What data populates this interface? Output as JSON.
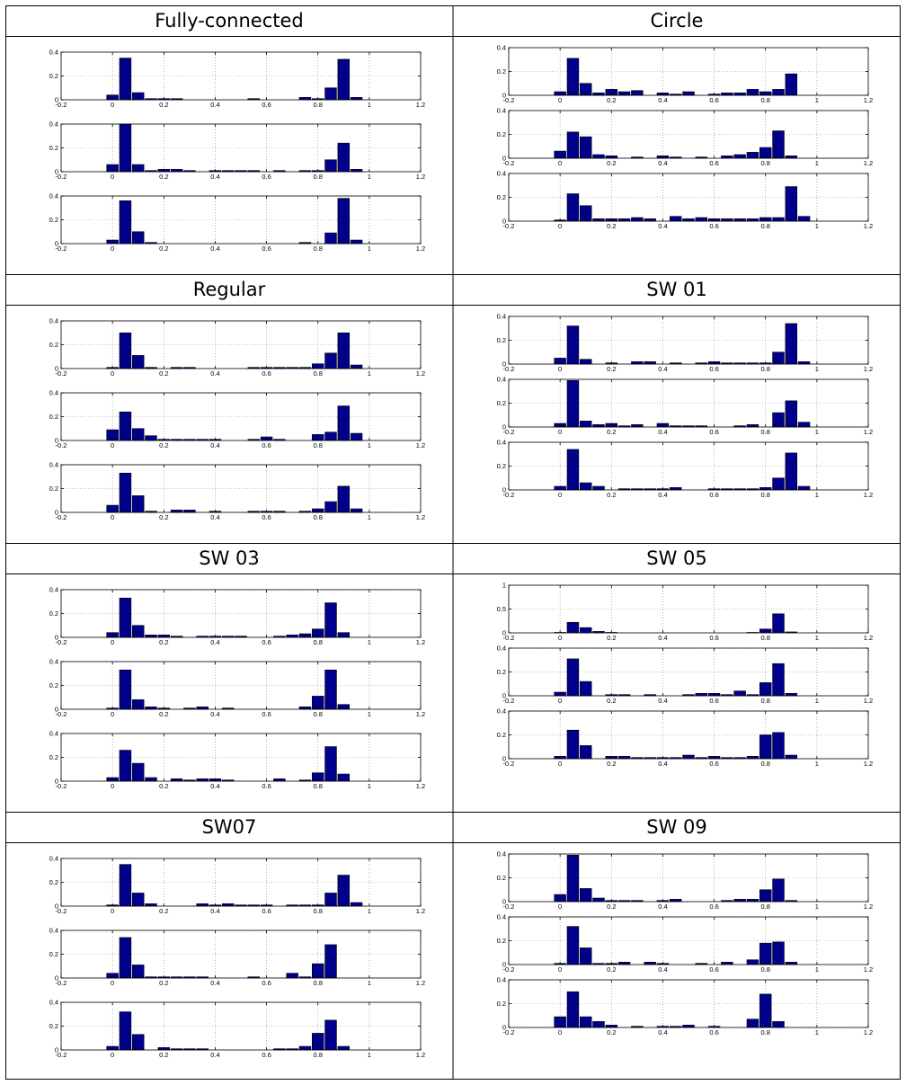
{
  "colors": {
    "bar": "#00008B",
    "bar_edge": "#000000",
    "axis": "#000000",
    "grid": "#888888",
    "table_border": "#000000"
  },
  "x_ticks": [
    "-0.2",
    "0",
    "0.2",
    "0.4",
    "0.6",
    "0.8",
    "1",
    "1.2"
  ],
  "chart_data": [
    {
      "title": "Fully-connected",
      "type": "bar",
      "panels": [
        {
          "ylim": [
            0,
            0.4
          ],
          "y_ticks": [
            "0",
            "0.2",
            "0.4"
          ],
          "values": [
            0.04,
            0.35,
            0.06,
            0.01,
            0.01,
            0.01,
            0,
            0,
            0,
            0,
            0,
            0.01,
            0,
            0,
            0,
            0.02,
            0.01,
            0.1,
            0.34,
            0.02
          ]
        },
        {
          "ylim": [
            0,
            0.4
          ],
          "y_ticks": [
            "0",
            "0.2",
            "0.4"
          ],
          "values": [
            0.06,
            0.4,
            0.06,
            0.01,
            0.02,
            0.02,
            0.01,
            0,
            0.01,
            0.01,
            0.01,
            0.01,
            0,
            0.01,
            0,
            0.01,
            0.01,
            0.1,
            0.24,
            0.02
          ]
        },
        {
          "ylim": [
            0,
            0.4
          ],
          "y_ticks": [
            "0",
            "0.2",
            "0.4"
          ],
          "values": [
            0.03,
            0.36,
            0.1,
            0.01,
            0,
            0,
            0,
            0,
            0,
            0,
            0,
            0,
            0,
            0,
            0,
            0.01,
            0,
            0.09,
            0.38,
            0.03
          ]
        }
      ]
    },
    {
      "title": "Circle",
      "type": "bar",
      "panels": [
        {
          "ylim": [
            0,
            0.4
          ],
          "y_ticks": [
            "0",
            "0.2",
            "0.4"
          ],
          "values": [
            0.03,
            0.31,
            0.1,
            0.02,
            0.05,
            0.03,
            0.04,
            0,
            0.02,
            0.01,
            0.03,
            0,
            0.01,
            0.02,
            0.02,
            0.05,
            0.03,
            0.05,
            0.18,
            0
          ]
        },
        {
          "ylim": [
            0,
            0.4
          ],
          "y_ticks": [
            "0",
            "0.2",
            "0.4"
          ],
          "values": [
            0.06,
            0.22,
            0.18,
            0.03,
            0.02,
            0,
            0.01,
            0,
            0.02,
            0.01,
            0,
            0.01,
            0,
            0.02,
            0.03,
            0.05,
            0.09,
            0.23,
            0.02,
            0
          ]
        },
        {
          "ylim": [
            0,
            0.4
          ],
          "y_ticks": [
            "0",
            "0.2",
            "0.4"
          ],
          "values": [
            0.01,
            0.23,
            0.13,
            0.02,
            0.02,
            0.02,
            0.03,
            0.02,
            0,
            0.04,
            0.02,
            0.03,
            0.02,
            0.02,
            0.02,
            0.02,
            0.03,
            0.03,
            0.29,
            0.04
          ]
        }
      ]
    },
    {
      "title": "Regular",
      "type": "bar",
      "panels": [
        {
          "ylim": [
            0,
            0.4
          ],
          "y_ticks": [
            "0",
            "0.2",
            "0.4"
          ],
          "values": [
            0.01,
            0.3,
            0.11,
            0.01,
            0,
            0.01,
            0.01,
            0,
            0,
            0,
            0,
            0.01,
            0.01,
            0.01,
            0.01,
            0.01,
            0.04,
            0.13,
            0.3,
            0.03
          ]
        },
        {
          "ylim": [
            0,
            0.4
          ],
          "y_ticks": [
            "0",
            "0.2",
            "0.4"
          ],
          "values": [
            0.09,
            0.24,
            0.1,
            0.04,
            0.01,
            0.01,
            0.01,
            0.01,
            0.01,
            0,
            0,
            0.01,
            0.03,
            0.01,
            0,
            0,
            0.05,
            0.07,
            0.29,
            0.06
          ]
        },
        {
          "ylim": [
            0,
            0.4
          ],
          "y_ticks": [
            "0",
            "0.2",
            "0.4"
          ],
          "values": [
            0.06,
            0.33,
            0.14,
            0.01,
            0,
            0.02,
            0.02,
            0,
            0.01,
            0,
            0,
            0.01,
            0.01,
            0.01,
            0,
            0.01,
            0.03,
            0.09,
            0.22,
            0.03
          ]
        }
      ]
    },
    {
      "title": "SW 01",
      "type": "bar",
      "panels": [
        {
          "ylim": [
            0,
            0.4
          ],
          "y_ticks": [
            "0",
            "0.2",
            "0.4"
          ],
          "values": [
            0.05,
            0.32,
            0.04,
            0,
            0.01,
            0,
            0.02,
            0.02,
            0,
            0.01,
            0,
            0.01,
            0.02,
            0.01,
            0.01,
            0.01,
            0.01,
            0.1,
            0.34,
            0.02
          ]
        },
        {
          "ylim": [
            0,
            0.4
          ],
          "y_ticks": [
            "0",
            "0.2",
            "0.4"
          ],
          "values": [
            0.03,
            0.39,
            0.05,
            0.02,
            0.03,
            0.01,
            0.02,
            0,
            0.03,
            0.01,
            0.01,
            0.01,
            0,
            0,
            0.01,
            0.02,
            0,
            0.12,
            0.22,
            0.04
          ]
        },
        {
          "ylim": [
            0,
            0.4
          ],
          "y_ticks": [
            "0",
            "0.2",
            "0.4"
          ],
          "values": [
            0.03,
            0.34,
            0.06,
            0.03,
            0,
            0.01,
            0.01,
            0.01,
            0.01,
            0.02,
            0,
            0,
            0.01,
            0.01,
            0.01,
            0.01,
            0.02,
            0.1,
            0.31,
            0.03
          ]
        }
      ]
    },
    {
      "title": "SW 03",
      "type": "bar",
      "panels": [
        {
          "ylim": [
            0,
            0.4
          ],
          "y_ticks": [
            "0",
            "0.2",
            "0.4"
          ],
          "values": [
            0.04,
            0.33,
            0.1,
            0.02,
            0.02,
            0.01,
            0,
            0.01,
            0.01,
            0.01,
            0.01,
            0,
            0,
            0.01,
            0.02,
            0.03,
            0.07,
            0.29,
            0.04,
            0
          ]
        },
        {
          "ylim": [
            0,
            0.4
          ],
          "y_ticks": [
            "0",
            "0.2",
            "0.4"
          ],
          "values": [
            0.01,
            0.33,
            0.08,
            0.02,
            0.01,
            0,
            0.01,
            0.02,
            0,
            0.01,
            0,
            0,
            0,
            0,
            0,
            0.02,
            0.11,
            0.33,
            0.04,
            0
          ]
        },
        {
          "ylim": [
            0,
            0.4
          ],
          "y_ticks": [
            "0",
            "0.2",
            "0.4"
          ],
          "values": [
            0.03,
            0.26,
            0.15,
            0.03,
            0,
            0.02,
            0.01,
            0.02,
            0.02,
            0.01,
            0,
            0,
            0,
            0.02,
            0,
            0.01,
            0.07,
            0.29,
            0.06,
            0
          ]
        }
      ]
    },
    {
      "title": "SW 05",
      "type": "bar",
      "panels": [
        {
          "ylim": [
            0,
            1
          ],
          "y_ticks": [
            "0",
            "0.5",
            "1"
          ],
          "values": [
            0.01,
            0.22,
            0.11,
            0.03,
            0.01,
            0,
            0,
            0,
            0,
            0,
            0,
            0,
            0,
            0,
            0,
            0.01,
            0.08,
            0.4,
            0.02,
            0
          ]
        },
        {
          "ylim": [
            0,
            0.4
          ],
          "y_ticks": [
            "0",
            "0.2",
            "0.4"
          ],
          "values": [
            0.03,
            0.31,
            0.12,
            0,
            0.01,
            0.01,
            0,
            0.01,
            0,
            0,
            0.01,
            0.02,
            0.02,
            0.01,
            0.04,
            0.01,
            0.11,
            0.27,
            0.02,
            0
          ]
        },
        {
          "ylim": [
            0,
            0.4
          ],
          "y_ticks": [
            "0",
            "0.2",
            "0.4"
          ],
          "values": [
            0.02,
            0.24,
            0.11,
            0,
            0.02,
            0.02,
            0.01,
            0.01,
            0.01,
            0.01,
            0.03,
            0.01,
            0.02,
            0.01,
            0.01,
            0.02,
            0.2,
            0.22,
            0.03,
            0
          ]
        }
      ]
    },
    {
      "title": "SW07",
      "type": "bar",
      "panels": [
        {
          "ylim": [
            0,
            0.4
          ],
          "y_ticks": [
            "0",
            "0.2",
            "0.4"
          ],
          "values": [
            0.01,
            0.35,
            0.11,
            0.02,
            0,
            0,
            0,
            0.02,
            0.01,
            0.02,
            0.01,
            0.01,
            0.01,
            0,
            0.01,
            0.01,
            0.01,
            0.11,
            0.26,
            0.03
          ]
        },
        {
          "ylim": [
            0,
            0.4
          ],
          "y_ticks": [
            "0",
            "0.2",
            "0.4"
          ],
          "values": [
            0.04,
            0.34,
            0.11,
            0.01,
            0.01,
            0.01,
            0.01,
            0.01,
            0,
            0,
            0,
            0.01,
            0,
            0,
            0.04,
            0.01,
            0.12,
            0.28,
            0,
            0
          ]
        },
        {
          "ylim": [
            0,
            0.4
          ],
          "y_ticks": [
            "0",
            "0.2",
            "0.4"
          ],
          "values": [
            0.03,
            0.32,
            0.13,
            0,
            0.02,
            0.01,
            0.01,
            0.01,
            0,
            0,
            0,
            0,
            0,
            0.01,
            0.01,
            0.03,
            0.14,
            0.25,
            0.03,
            0
          ]
        }
      ]
    },
    {
      "title": "SW 09",
      "type": "bar",
      "panels": [
        {
          "ylim": [
            0,
            0.4
          ],
          "y_ticks": [
            "0",
            "0.2",
            "0.4"
          ],
          "values": [
            0.06,
            0.39,
            0.11,
            0.03,
            0.01,
            0.01,
            0.01,
            0,
            0.01,
            0.02,
            0,
            0,
            0,
            0.01,
            0.02,
            0.02,
            0.1,
            0.19,
            0.01,
            0
          ]
        },
        {
          "ylim": [
            0,
            0.4
          ],
          "y_ticks": [
            "0",
            "0.2",
            "0.4"
          ],
          "values": [
            0.01,
            0.32,
            0.14,
            0.01,
            0.01,
            0.02,
            0,
            0.02,
            0.01,
            0,
            0,
            0.01,
            0,
            0.02,
            0,
            0.04,
            0.18,
            0.19,
            0.02,
            0
          ]
        },
        {
          "ylim": [
            0,
            0.4
          ],
          "y_ticks": [
            "0",
            "0.2",
            "0.4"
          ],
          "values": [
            0.09,
            0.3,
            0.09,
            0.05,
            0.02,
            0,
            0.01,
            0,
            0.01,
            0.01,
            0.02,
            0,
            0.01,
            0,
            0,
            0.07,
            0.28,
            0.05,
            0,
            0
          ]
        }
      ]
    }
  ]
}
